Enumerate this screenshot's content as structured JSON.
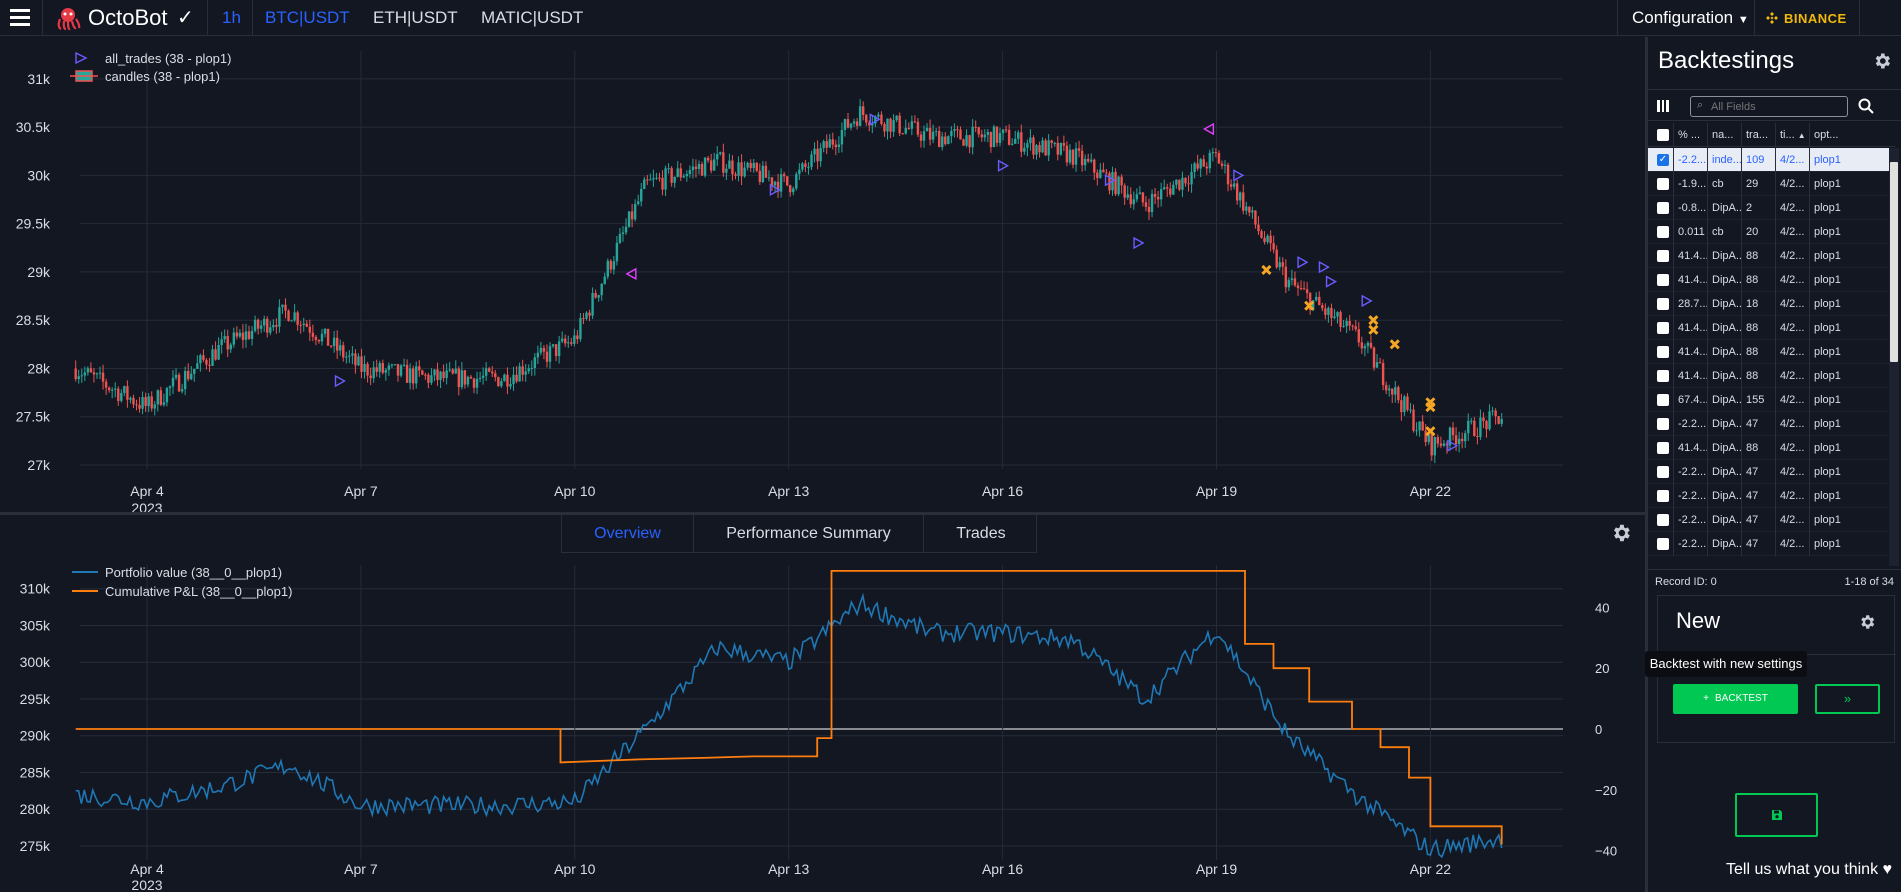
{
  "topbar": {
    "brand": "OctoBot",
    "brand_check": "✓",
    "timeframe": "1h",
    "pairs": [
      "BTC|USDT",
      "ETH|USDT",
      "MATIC|USDT"
    ],
    "configuration": "Configuration",
    "exchange": "BINANCE",
    "accent": "#2962ff",
    "binance_color": "#f0b90b"
  },
  "price_chart": {
    "legend": [
      "all_trades (38 - plop1)",
      "candles (38 - plop1)"
    ],
    "y_ticks": [
      "31k",
      "30.5k",
      "30k",
      "29.5k",
      "29k",
      "28.5k",
      "28k",
      "27.5k",
      "27k"
    ],
    "x_ticks": [
      "Apr 4",
      "Apr 7",
      "Apr 10",
      "Apr 13",
      "Apr 16",
      "Apr 19",
      "Apr 22"
    ],
    "year_label": "2023",
    "up_color": "#26a69a",
    "down_color": "#ef5350"
  },
  "tabs": {
    "overview": "Overview",
    "performance": "Performance Summary",
    "trades": "Trades"
  },
  "portfolio_chart": {
    "legend": [
      "Portfolio value (38__0__plop1)",
      "Cumulative P&L (38__0__plop1)"
    ],
    "y_left_ticks": [
      "310k",
      "305k",
      "300k",
      "295k",
      "290k",
      "285k",
      "280k",
      "275k"
    ],
    "y_right_ticks": [
      "40",
      "20",
      "0",
      "−20",
      "−40"
    ],
    "x_ticks": [
      "Apr 4",
      "Apr 7",
      "Apr 10",
      "Apr 13",
      "Apr 16",
      "Apr 19",
      "Apr 22"
    ],
    "year_label": "2023",
    "portfolio_color": "#1f77b4",
    "pnl_color": "#ff7f0e"
  },
  "chart_data": [
    {
      "type": "line",
      "title": "",
      "series": [
        {
          "name": "candles (38 - plop1)",
          "x": [
            "Apr 3",
            "Apr 4",
            "Apr 5",
            "Apr 6",
            "Apr 7",
            "Apr 8",
            "Apr 9",
            "Apr 10",
            "Apr 11",
            "Apr 12",
            "Apr 13",
            "Apr 14",
            "Apr 15",
            "Apr 16",
            "Apr 17",
            "Apr 18",
            "Apr 19",
            "Apr 20",
            "Apr 21",
            "Apr 22",
            "Apr 23"
          ],
          "values": [
            28000,
            27600,
            28200,
            28600,
            28000,
            27900,
            27900,
            28300,
            29900,
            30150,
            29900,
            30650,
            30400,
            30400,
            30200,
            29700,
            30200,
            28900,
            28300,
            27200,
            27500
          ]
        }
      ],
      "ylim": [
        27000,
        31200
      ]
    },
    {
      "type": "line",
      "title": "",
      "series": [
        {
          "name": "Portfolio value (38__0__plop1)",
          "x": [
            "Apr 3",
            "Apr 4",
            "Apr 5",
            "Apr 6",
            "Apr 7",
            "Apr 8",
            "Apr 9",
            "Apr 10",
            "Apr 11",
            "Apr 12",
            "Apr 13",
            "Apr 14",
            "Apr 15",
            "Apr 16",
            "Apr 17",
            "Apr 18",
            "Apr 19",
            "Apr 20",
            "Apr 21",
            "Apr 22",
            "Apr 23"
          ],
          "values": [
            282000,
            281000,
            283000,
            286000,
            280500,
            280500,
            280500,
            281000,
            291000,
            302000,
            300000,
            308000,
            304000,
            304000,
            303000,
            295000,
            304500,
            290000,
            281500,
            274500,
            276000
          ]
        },
        {
          "name": "Cumulative P&L (38__0__plop1)",
          "x": [
            "Apr 3",
            "Apr 9.8",
            "Apr 10.9",
            "Apr 12.5",
            "Apr 13.6",
            "Apr 19.4",
            "Apr 20",
            "Apr 21.7",
            "Apr 23"
          ],
          "values": [
            0,
            -12,
            -11,
            -9,
            52,
            30,
            9,
            -32,
            -38
          ]
        }
      ],
      "ylim": [
        273000,
        311000
      ]
    }
  ],
  "sidebar": {
    "title": "Backtestings",
    "search_placeholder": "All Fields",
    "columns": [
      "% ...",
      "na...",
      "tra...",
      "ti...",
      "opt..."
    ],
    "rows": [
      {
        "pct": "-2.2...",
        "name": "inde...",
        "trades": "109",
        "time": "4/2...",
        "opt": "plop1",
        "checked": true
      },
      {
        "pct": "-1.9...",
        "name": "cb",
        "trades": "29",
        "time": "4/2...",
        "opt": "plop1",
        "checked": false
      },
      {
        "pct": "-0.8...",
        "name": "DipA...",
        "trades": "2",
        "time": "4/2...",
        "opt": "plop1",
        "checked": false
      },
      {
        "pct": "0.011",
        "name": "cb",
        "trades": "20",
        "time": "4/2...",
        "opt": "plop1",
        "checked": false
      },
      {
        "pct": "41.4...",
        "name": "DipA...",
        "trades": "88",
        "time": "4/2...",
        "opt": "plop1",
        "checked": false
      },
      {
        "pct": "41.4...",
        "name": "DipA...",
        "trades": "88",
        "time": "4/2...",
        "opt": "plop1",
        "checked": false
      },
      {
        "pct": "28.7...",
        "name": "DipA...",
        "trades": "18",
        "time": "4/2...",
        "opt": "plop1",
        "checked": false
      },
      {
        "pct": "41.4...",
        "name": "DipA...",
        "trades": "88",
        "time": "4/2...",
        "opt": "plop1",
        "checked": false
      },
      {
        "pct": "41.4...",
        "name": "DipA...",
        "trades": "88",
        "time": "4/2...",
        "opt": "plop1",
        "checked": false
      },
      {
        "pct": "41.4...",
        "name": "DipA...",
        "trades": "88",
        "time": "4/2...",
        "opt": "plop1",
        "checked": false
      },
      {
        "pct": "67.4...",
        "name": "DipA...",
        "trades": "155",
        "time": "4/2...",
        "opt": "plop1",
        "checked": false
      },
      {
        "pct": "-2.2...",
        "name": "DipA...",
        "trades": "47",
        "time": "4/2...",
        "opt": "plop1",
        "checked": false
      },
      {
        "pct": "41.4...",
        "name": "DipA...",
        "trades": "88",
        "time": "4/2...",
        "opt": "plop1",
        "checked": false
      },
      {
        "pct": "-2.2...",
        "name": "DipA...",
        "trades": "47",
        "time": "4/2...",
        "opt": "plop1",
        "checked": false
      },
      {
        "pct": "-2.2...",
        "name": "DipA...",
        "trades": "47",
        "time": "4/2...",
        "opt": "plop1",
        "checked": false
      },
      {
        "pct": "-2.2...",
        "name": "DipA...",
        "trades": "47",
        "time": "4/2...",
        "opt": "plop1",
        "checked": false
      },
      {
        "pct": "-2.2...",
        "name": "DipA...",
        "trades": "47",
        "time": "4/2...",
        "opt": "plop1",
        "checked": false
      }
    ],
    "record_id": "Record ID: 0",
    "record_range": "1-18 of 34",
    "new_title": "New",
    "tooltip": "Backtest with new settings",
    "backtest_button": "BACKTEST",
    "feedback": "Tell us what you think"
  }
}
